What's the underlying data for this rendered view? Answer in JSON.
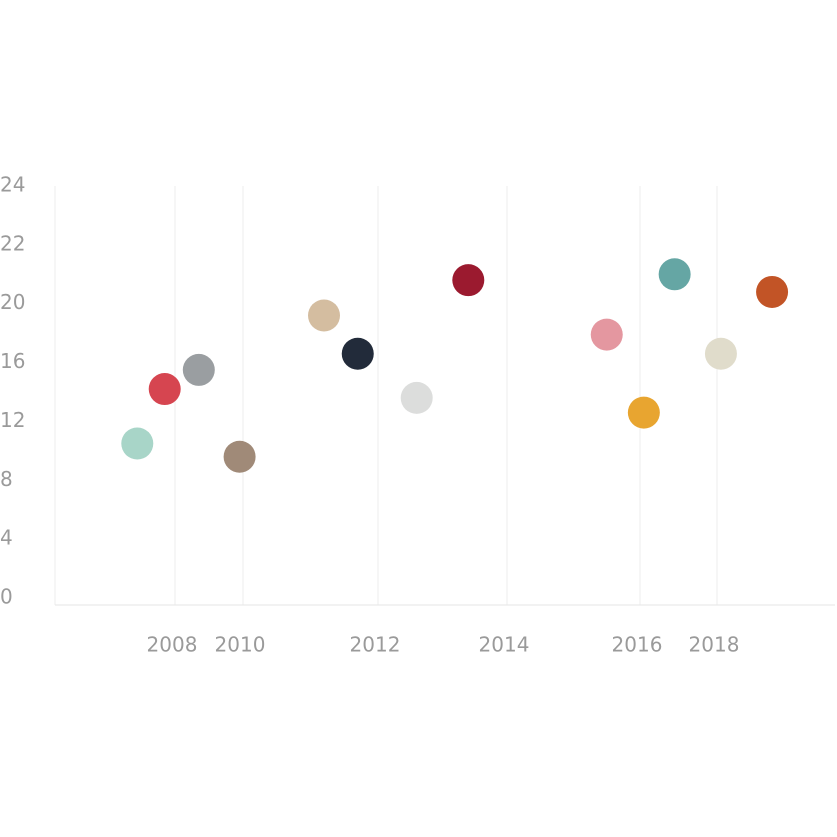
{
  "chart_data": {
    "type": "scatter",
    "x": [
      2006.9,
      2007.7,
      2008.7,
      2009.9,
      2011.2,
      2011.7,
      2012.6,
      2013.4,
      2015.5,
      2016.1,
      2016.9,
      2018.1,
      2019.4
    ],
    "values": [
      10.5,
      14.2,
      15.5,
      9.6,
      19.2,
      16.6,
      13.6,
      20.8,
      17.9,
      12.6,
      21.0,
      16.6,
      20.4
    ],
    "colors": [
      "#a8d5c8",
      "#d64550",
      "#9a9ea1",
      "#a08a78",
      "#d4bda0",
      "#222b3a",
      "#dcdddc",
      "#9b1a2f",
      "#e497a0",
      "#e8a530",
      "#65a6a4",
      "#e0dccb",
      "#c25426"
    ],
    "xlim": [
      2004.5,
      2021
    ],
    "xticks": [
      2008,
      2010,
      2012,
      2014,
      2016,
      2018
    ],
    "ylim": [
      0,
      24
    ],
    "yticks": [
      0,
      4,
      8,
      12,
      16,
      20,
      22,
      24
    ],
    "grid": true
  }
}
